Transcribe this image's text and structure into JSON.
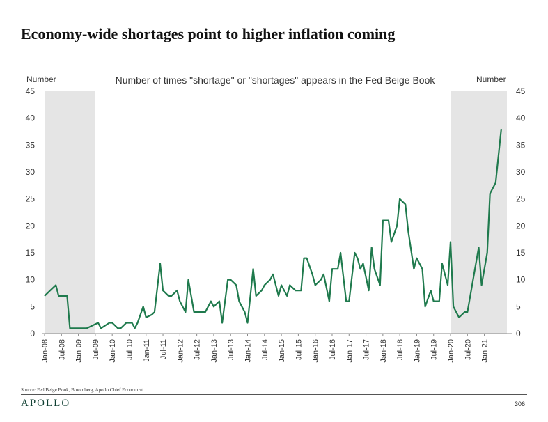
{
  "header": {
    "title": "Economy-wide shortages point to higher inflation coming"
  },
  "footer": {
    "source": "Source: Fed Beige Book, Bloomberg, Apollo Chief Economist",
    "brand": "APOLLO",
    "page_number": "306"
  },
  "colors": {
    "line": "#1f7a4d",
    "shade": "#e5e5e5"
  },
  "chart_data": {
    "type": "line",
    "title": "Number of times \"shortage\" or \"shortages\" appears in the Fed Beige Book",
    "ylabel_left": "Number",
    "ylabel_right": "Number",
    "ylim": [
      0,
      45
    ],
    "yticks": [
      0,
      5,
      10,
      15,
      20,
      25,
      30,
      35,
      40,
      45
    ],
    "x_range": [
      "2008-01",
      "2021-09"
    ],
    "xtick_labels": [
      "Jan-08",
      "Jul-08",
      "Jan-09",
      "Jul-09",
      "Jan-10",
      "Jul-10",
      "Jan-11",
      "Jul-11",
      "Jan-12",
      "Jul-12",
      "Jan-13",
      "Jul-13",
      "Jan-14",
      "Jul-14",
      "Jan-15",
      "Jul-15",
      "Jan-16",
      "Jul-16",
      "Jan-17",
      "Jul-17",
      "Jan-18",
      "Jul-18",
      "Jan-19",
      "Jul-19",
      "Jan-20",
      "Jul-20",
      "Jan-21"
    ],
    "shaded_periods": [
      [
        "2008-01",
        "2009-07"
      ],
      [
        "2020-01",
        "2021-09"
      ]
    ],
    "grid": false,
    "legend": "none",
    "series": [
      {
        "points": [
          [
            "2008-01",
            7
          ],
          [
            "2008-03",
            8
          ],
          [
            "2008-05",
            9
          ],
          [
            "2008-06",
            7
          ],
          [
            "2008-08",
            7
          ],
          [
            "2008-09",
            7
          ],
          [
            "2008-10",
            1
          ],
          [
            "2009-01",
            1
          ],
          [
            "2009-03",
            1
          ],
          [
            "2009-04",
            1
          ],
          [
            "2009-06",
            1.5
          ],
          [
            "2009-08",
            2
          ],
          [
            "2009-09",
            1
          ],
          [
            "2009-12",
            2
          ],
          [
            "2010-01",
            2
          ],
          [
            "2010-03",
            1
          ],
          [
            "2010-04",
            1
          ],
          [
            "2010-06",
            2
          ],
          [
            "2010-08",
            2
          ],
          [
            "2010-09",
            1
          ],
          [
            "2010-10",
            2
          ],
          [
            "2010-12",
            5
          ],
          [
            "2011-01",
            3
          ],
          [
            "2011-03",
            3.5
          ],
          [
            "2011-04",
            4
          ],
          [
            "2011-06",
            13
          ],
          [
            "2011-07",
            8
          ],
          [
            "2011-09",
            7
          ],
          [
            "2011-10",
            7
          ],
          [
            "2011-12",
            8
          ],
          [
            "2012-01",
            6
          ],
          [
            "2012-03",
            4
          ],
          [
            "2012-04",
            10
          ],
          [
            "2012-06",
            4
          ],
          [
            "2012-08",
            4
          ],
          [
            "2012-10",
            4
          ],
          [
            "2012-12",
            6
          ],
          [
            "2013-01",
            5
          ],
          [
            "2013-03",
            6
          ],
          [
            "2013-04",
            2
          ],
          [
            "2013-06",
            10
          ],
          [
            "2013-07",
            10
          ],
          [
            "2013-09",
            9
          ],
          [
            "2013-10",
            6
          ],
          [
            "2013-12",
            4
          ],
          [
            "2014-01",
            2
          ],
          [
            "2014-03",
            12
          ],
          [
            "2014-04",
            7
          ],
          [
            "2014-06",
            8
          ],
          [
            "2014-07",
            9
          ],
          [
            "2014-09",
            10
          ],
          [
            "2014-10",
            11
          ],
          [
            "2014-12",
            7
          ],
          [
            "2015-01",
            9
          ],
          [
            "2015-03",
            7
          ],
          [
            "2015-04",
            9
          ],
          [
            "2015-06",
            8
          ],
          [
            "2015-08",
            8
          ],
          [
            "2015-09",
            14
          ],
          [
            "2015-10",
            14
          ],
          [
            "2015-12",
            11
          ],
          [
            "2016-01",
            9
          ],
          [
            "2016-03",
            10
          ],
          [
            "2016-04",
            11
          ],
          [
            "2016-06",
            6
          ],
          [
            "2016-07",
            12
          ],
          [
            "2016-09",
            12
          ],
          [
            "2016-10",
            15
          ],
          [
            "2016-12",
            6
          ],
          [
            "2017-01",
            6
          ],
          [
            "2017-03",
            15
          ],
          [
            "2017-04",
            14
          ],
          [
            "2017-05",
            12
          ],
          [
            "2017-06",
            13
          ],
          [
            "2017-08",
            8
          ],
          [
            "2017-09",
            16
          ],
          [
            "2017-10",
            12
          ],
          [
            "2017-12",
            9
          ],
          [
            "2018-01",
            21
          ],
          [
            "2018-03",
            21
          ],
          [
            "2018-04",
            17
          ],
          [
            "2018-06",
            20
          ],
          [
            "2018-07",
            25
          ],
          [
            "2018-09",
            24
          ],
          [
            "2018-10",
            19
          ],
          [
            "2018-12",
            12
          ],
          [
            "2019-01",
            14
          ],
          [
            "2019-03",
            12
          ],
          [
            "2019-04",
            5
          ],
          [
            "2019-06",
            8
          ],
          [
            "2019-07",
            6
          ],
          [
            "2019-09",
            6
          ],
          [
            "2019-10",
            13
          ],
          [
            "2019-12",
            9
          ],
          [
            "2020-01",
            17
          ],
          [
            "2020-02",
            5
          ],
          [
            "2020-04",
            3
          ],
          [
            "2020-06",
            4
          ],
          [
            "2020-07",
            4
          ],
          [
            "2020-09",
            10
          ],
          [
            "2020-11",
            16
          ],
          [
            "2020-12",
            9
          ],
          [
            "2021-02",
            15
          ],
          [
            "2021-03",
            26
          ],
          [
            "2021-05",
            28
          ],
          [
            "2021-07",
            38
          ]
        ]
      }
    ]
  }
}
